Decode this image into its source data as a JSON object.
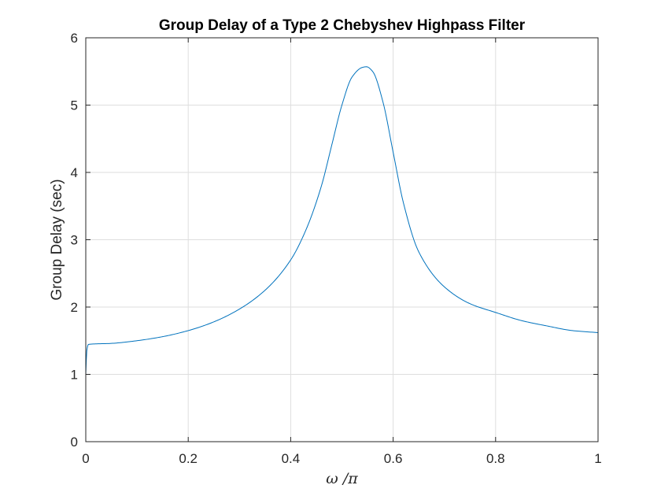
{
  "chart_data": {
    "type": "line",
    "title": "Group Delay of a Type 2 Chebyshev Highpass Filter",
    "xlabel": "ω /π",
    "ylabel": "Group Delay (sec)",
    "xlim": [
      0,
      1
    ],
    "ylim": [
      0,
      6
    ],
    "xticks": [
      0,
      0.2,
      0.4,
      0.6,
      0.8,
      1
    ],
    "xtick_labels": [
      "0",
      "0.2",
      "0.4",
      "0.6",
      "0.8",
      "1"
    ],
    "yticks": [
      0,
      1,
      2,
      3,
      4,
      5,
      6
    ],
    "ytick_labels": [
      "0",
      "1",
      "2",
      "3",
      "4",
      "5",
      "6"
    ],
    "grid": true,
    "series": [
      {
        "color": "#0072bd",
        "x": [
          0,
          0.002,
          0.005,
          0.05,
          0.1,
          0.15,
          0.2,
          0.25,
          0.3,
          0.35,
          0.4,
          0.43,
          0.46,
          0.48,
          0.5,
          0.52,
          0.54,
          0.548,
          0.56,
          0.58,
          0.6,
          0.62,
          0.65,
          0.7,
          0.75,
          0.8,
          0.85,
          0.9,
          0.95,
          1.0
        ],
        "y": [
          1.0,
          1.35,
          1.445,
          1.46,
          1.5,
          1.56,
          1.65,
          1.78,
          1.97,
          2.25,
          2.7,
          3.15,
          3.8,
          4.4,
          5.0,
          5.42,
          5.56,
          5.57,
          5.5,
          5.05,
          4.3,
          3.55,
          2.82,
          2.3,
          2.05,
          1.92,
          1.8,
          1.72,
          1.65,
          1.62
        ]
      }
    ]
  }
}
